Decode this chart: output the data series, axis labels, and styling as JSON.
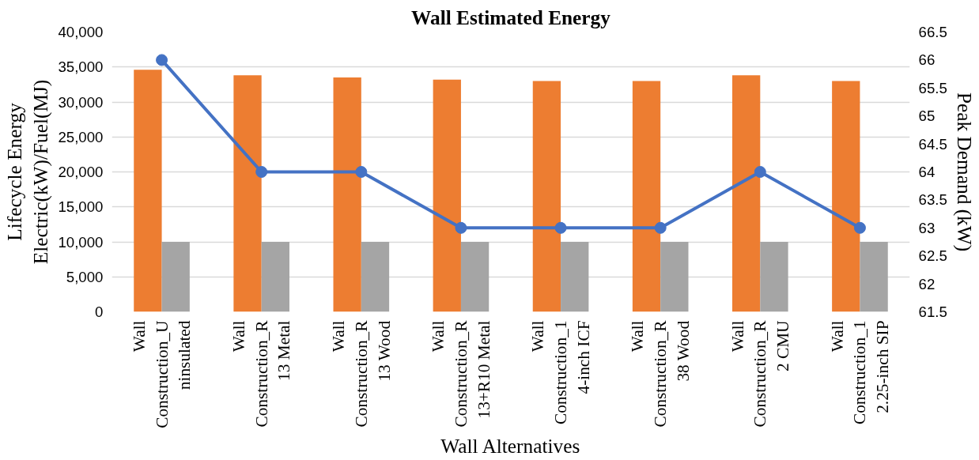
{
  "chart_data": {
    "type": "bar",
    "title": "Wall Estimated Energy",
    "xlabel": "Wall Alternatives",
    "ylabel": "Lifecycle Energy Electric(kW)/Fuel(MJ)",
    "y2label": "Peak Demand (kW)",
    "categories": [
      "Wall Construction_Uninsulated",
      "Wall Construction_R13 Metal",
      "Wall Construction_R13 Wood",
      "Wall Construction_R13+R10 Metal",
      "Wall Construction_14-inch ICF",
      "Wall Construction_R38 Wood",
      "Wall Construction_R2 CMU",
      "Wall Construction_12.25-inch SIP"
    ],
    "series": [
      {
        "color": "#ed7d31",
        "values": [
          34600,
          33800,
          33500,
          33200,
          33000,
          33000,
          33800,
          33000
        ]
      },
      {
        "color": "#a5a5a5",
        "values": [
          10000,
          10000,
          10000,
          10000,
          10000,
          10000,
          10000,
          10000
        ]
      },
      {
        "type": "line",
        "axis": "y2",
        "color": "#4472c4",
        "marker": "circle",
        "values": [
          66,
          64,
          64,
          63,
          63,
          63,
          64,
          63
        ]
      }
    ],
    "ylim": [
      0,
      40000
    ],
    "yticks": [
      {
        "value": 0,
        "label": "0"
      },
      {
        "value": 5000,
        "label": "5,000"
      },
      {
        "value": 10000,
        "label": "10,000"
      },
      {
        "value": 15000,
        "label": "15,000"
      },
      {
        "value": 20000,
        "label": "20,000"
      },
      {
        "value": 25000,
        "label": "25,000"
      },
      {
        "value": 30000,
        "label": "30,000"
      },
      {
        "value": 35000,
        "label": "35,000"
      },
      {
        "value": 40000,
        "label": "40,000"
      }
    ],
    "y2lim": [
      61.5,
      66.5
    ],
    "y2ticks": [
      61.5,
      62,
      62.5,
      63,
      63.5,
      64,
      64.5,
      65,
      65.5,
      66,
      66.5
    ],
    "grid": "y"
  }
}
